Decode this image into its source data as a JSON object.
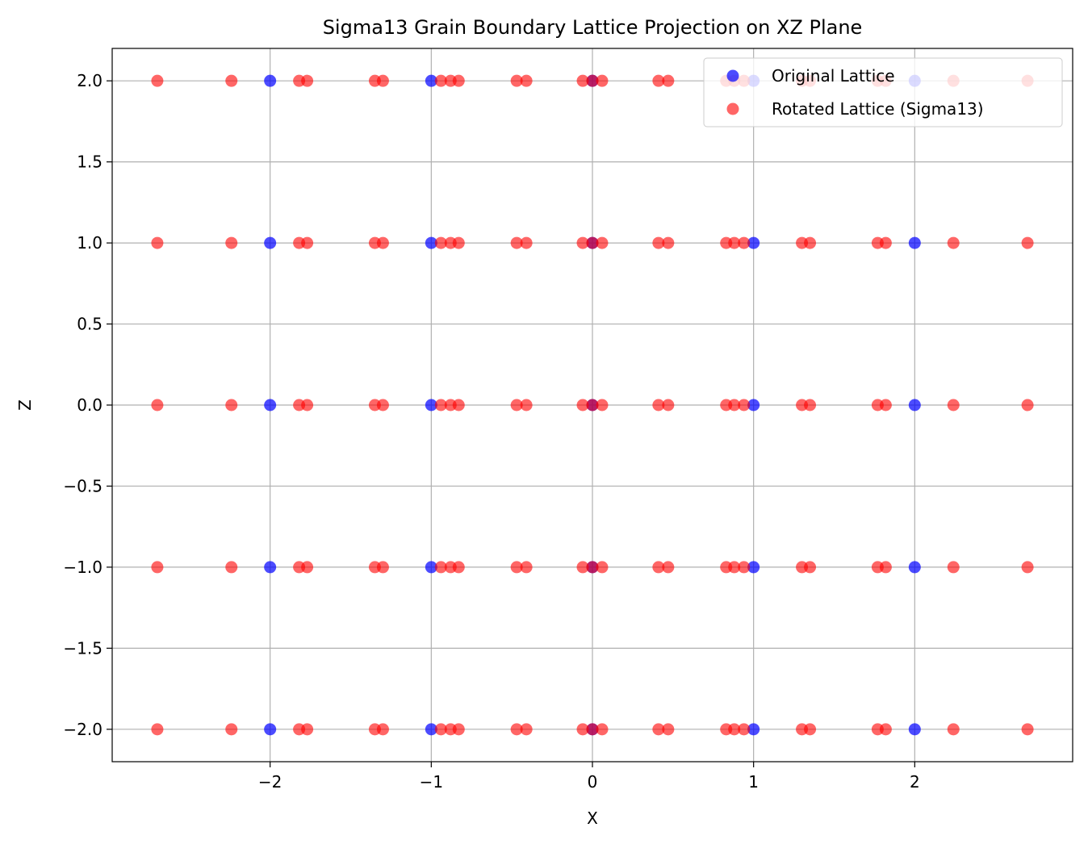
{
  "chart_data": {
    "type": "scatter",
    "title": "Sigma13 Grain Boundary Lattice Projection on XZ Plane",
    "xlabel": "X",
    "ylabel": "Z",
    "xlim": [
      -2.98,
      2.98
    ],
    "ylim": [
      -2.2,
      2.2
    ],
    "xticks": [
      -2,
      -1,
      0,
      1,
      2
    ],
    "xtick_labels": [
      "−2",
      "−1",
      "0",
      "1",
      "2"
    ],
    "yticks": [
      2.0,
      1.5,
      1.0,
      0.5,
      0.0,
      -0.5,
      -1.0,
      -1.5,
      -2.0
    ],
    "ytick_labels": [
      "2.0",
      "1.5",
      "1.0",
      "0.5",
      "0.0",
      "−0.5",
      "−1.0",
      "−1.5",
      "−2.0"
    ],
    "grid": true,
    "legend_position": "top-right",
    "z_levels": [
      -2,
      -1,
      0,
      1,
      2
    ],
    "series": [
      {
        "name": "Original Lattice",
        "color": "#0000ff",
        "alpha": 0.7,
        "x_positions": [
          -2,
          -1,
          0,
          1,
          2
        ]
      },
      {
        "name": "Rotated Lattice (Sigma13)",
        "color": "#ff0000",
        "alpha": 0.6,
        "x_positions": [
          -2.7,
          -2.24,
          -1.82,
          -1.77,
          -1.35,
          -1.3,
          -0.94,
          -0.88,
          -0.83,
          -0.47,
          -0.41,
          -0.06,
          0,
          0.06,
          0.41,
          0.47,
          0.83,
          0.88,
          0.94,
          1.3,
          1.35,
          1.77,
          1.82,
          2.24,
          2.7
        ]
      }
    ]
  }
}
